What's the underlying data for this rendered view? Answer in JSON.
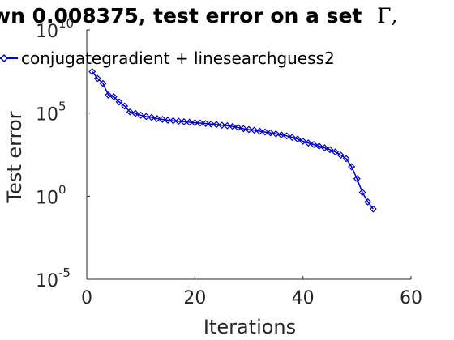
{
  "chart_data": {
    "type": "line",
    "title": "wn 0.008375, test error on a set",
    "title_symbol": "Γ,",
    "xlabel": "Iterations",
    "ylabel": "Test error",
    "yscale": "log",
    "xlim": [
      0,
      60
    ],
    "ylim_exp": [
      -5,
      10
    ],
    "x_ticks": [
      0,
      20,
      40,
      60
    ],
    "x_tick_labels": [
      "0",
      "20",
      "40",
      "60"
    ],
    "y_ticks_exp": [
      -5,
      0,
      5,
      10
    ],
    "y_tick_labels": [
      {
        "base": "10",
        "exp": "-5"
      },
      {
        "base": "10",
        "exp": "0"
      },
      {
        "base": "10",
        "exp": "5"
      },
      {
        "base": "10",
        "exp": "10"
      }
    ],
    "legend": {
      "label": "conjugategradient + linesearchguess2",
      "location": "top-left"
    },
    "series": [
      {
        "name": "conjugategradient + linesearchguess2",
        "color": "#0000cc",
        "marker": "diamond",
        "x": [
          1,
          2,
          3,
          4,
          5,
          6,
          7,
          8,
          9,
          10,
          11,
          12,
          13,
          14,
          15,
          16,
          17,
          18,
          19,
          20,
          21,
          22,
          23,
          24,
          25,
          26,
          27,
          28,
          29,
          30,
          31,
          32,
          33,
          34,
          35,
          36,
          37,
          38,
          39,
          40,
          41,
          42,
          43,
          44,
          45,
          46,
          47,
          48,
          49,
          50,
          51,
          52,
          53
        ],
        "y_log10": [
          7.49,
          7.08,
          6.78,
          6.08,
          5.98,
          5.67,
          5.42,
          5.07,
          4.98,
          4.87,
          4.79,
          4.74,
          4.67,
          4.62,
          4.57,
          4.54,
          4.51,
          4.48,
          4.45,
          4.42,
          4.4,
          4.37,
          4.34,
          4.31,
          4.27,
          4.24,
          4.2,
          4.13,
          4.06,
          4.01,
          3.97,
          3.91,
          3.86,
          3.81,
          3.75,
          3.69,
          3.63,
          3.54,
          3.44,
          3.31,
          3.2,
          3.11,
          3.01,
          2.91,
          2.8,
          2.66,
          2.47,
          2.26,
          1.77,
          1.05,
          0.23,
          -0.34,
          -0.77
        ]
      }
    ]
  }
}
